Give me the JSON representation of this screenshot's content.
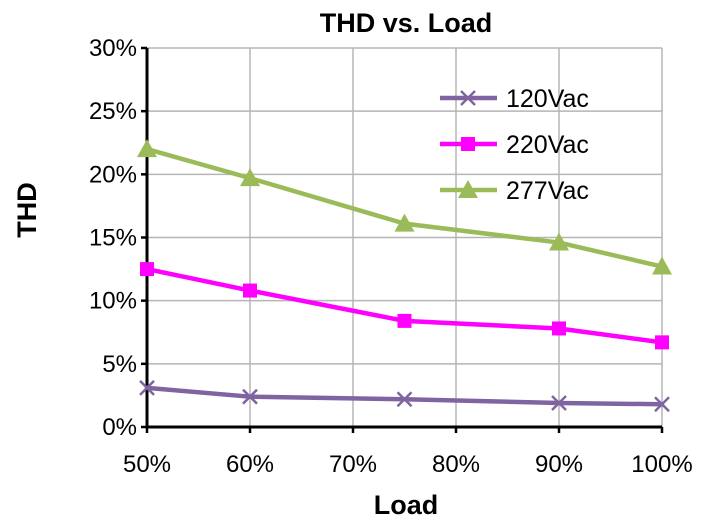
{
  "chart_data": {
    "type": "line",
    "title": "THD vs. Load",
    "xlabel": "Load",
    "ylabel": "THD",
    "categories": [
      "50%",
      "60%",
      "70%",
      "80%",
      "90%",
      "100%"
    ],
    "x": [
      50,
      60,
      75,
      90,
      100
    ],
    "xlim": [
      50,
      100
    ],
    "ylim": [
      0,
      30
    ],
    "yticks": [
      "0%",
      "5%",
      "10%",
      "15%",
      "20%",
      "25%",
      "30%"
    ],
    "grid": true,
    "legend": "top-right",
    "series": [
      {
        "name": "120Vac",
        "marker": "x",
        "color": "#8064a2",
        "values": [
          3.1,
          2.4,
          2.2,
          1.9,
          1.8
        ]
      },
      {
        "name": "220Vac",
        "marker": "square",
        "color": "#ff00ff",
        "values": [
          12.5,
          10.8,
          8.4,
          7.8,
          6.7
        ]
      },
      {
        "name": "277Vac",
        "marker": "triangle",
        "color": "#9bbb59",
        "values": [
          22.0,
          19.7,
          16.1,
          14.6,
          12.7
        ]
      }
    ]
  }
}
